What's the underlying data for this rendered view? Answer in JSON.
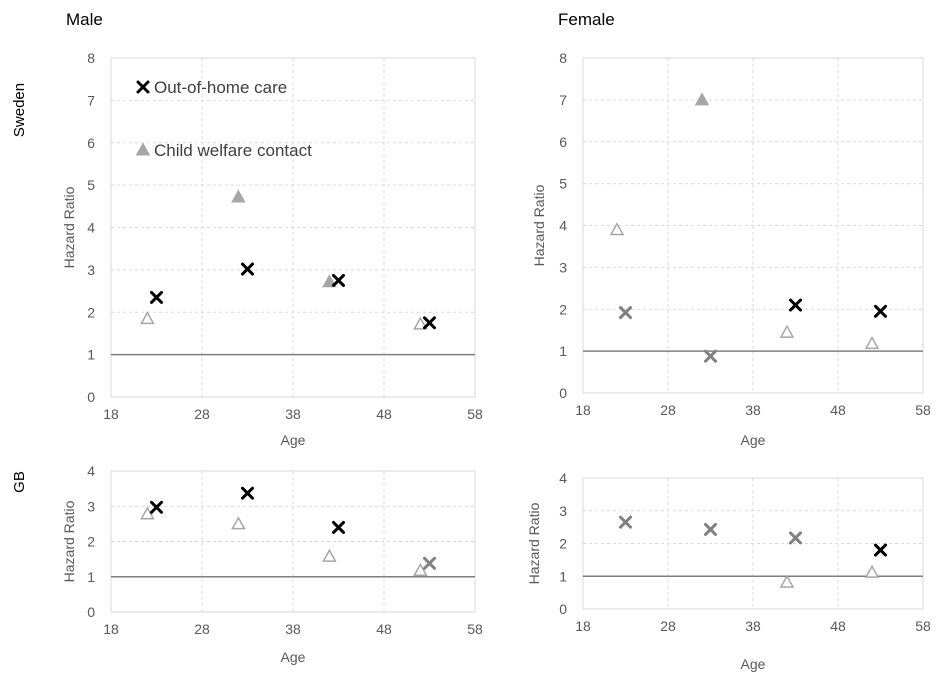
{
  "figure": {
    "col_titles": [
      "Male",
      "Female"
    ],
    "row_labels": [
      "Sweden",
      "GB"
    ]
  },
  "chart_data": [
    {
      "type": "scatter",
      "panel": "Sweden - Male",
      "xlabel": "Age",
      "ylabel": "Hazard Ratio",
      "xlim": [
        18,
        58
      ],
      "ylim": [
        0,
        8
      ],
      "xticks": [
        18,
        28,
        38,
        48,
        58
      ],
      "yticks": [
        0,
        1,
        2,
        3,
        4,
        5,
        6,
        7,
        8
      ],
      "reference_line": 1,
      "grid": true,
      "legend": {
        "placement": "top-left",
        "entries": [
          {
            "label": "Out-of-home care",
            "marker": "x",
            "color": "#000000"
          },
          {
            "label": "Child welfare contact",
            "marker": "triangle-filled",
            "color": "#a6a6a6"
          }
        ]
      },
      "series": [
        {
          "name": "Out-of-home care",
          "x": [
            23,
            33,
            43,
            53
          ],
          "y": [
            2.35,
            3.02,
            2.75,
            1.75
          ],
          "styles": [
            "x-black",
            "x-black",
            "x-black",
            "x-black"
          ]
        },
        {
          "name": "Child welfare contact",
          "x": [
            22,
            32,
            42,
            52
          ],
          "y": [
            1.85,
            4.72,
            2.72,
            1.72
          ],
          "styles": [
            "tri-open",
            "tri-filled",
            "tri-filled",
            "tri-open"
          ]
        }
      ]
    },
    {
      "type": "scatter",
      "panel": "Sweden - Female",
      "xlabel": "Age",
      "ylabel": "Hazard Ratio",
      "xlim": [
        18,
        58
      ],
      "ylim": [
        0,
        8
      ],
      "xticks": [
        18,
        28,
        38,
        48,
        58
      ],
      "yticks": [
        0,
        1,
        2,
        3,
        4,
        5,
        6,
        7,
        8
      ],
      "reference_line": 1,
      "grid": true,
      "series": [
        {
          "name": "Out-of-home care",
          "x": [
            23,
            33,
            43,
            53
          ],
          "y": [
            1.92,
            0.88,
            2.1,
            1.95
          ],
          "styles": [
            "x-gray",
            "x-gray",
            "x-black",
            "x-black"
          ]
        },
        {
          "name": "Child welfare contact",
          "x": [
            22,
            32,
            42,
            52
          ],
          "y": [
            3.9,
            7.0,
            1.45,
            1.18
          ],
          "styles": [
            "tri-open",
            "tri-filled",
            "tri-open",
            "tri-open"
          ]
        }
      ]
    },
    {
      "type": "scatter",
      "panel": "GB - Male",
      "xlabel": "Age",
      "ylabel": "Hazard Ratio",
      "xlim": [
        18,
        58
      ],
      "ylim": [
        0,
        4
      ],
      "xticks": [
        18,
        28,
        38,
        48,
        58
      ],
      "yticks": [
        0,
        1,
        2,
        3,
        4
      ],
      "reference_line": 1,
      "grid": true,
      "series": [
        {
          "name": "Out-of-home care",
          "x": [
            23,
            33,
            43,
            53
          ],
          "y": [
            2.97,
            3.37,
            2.4,
            1.38
          ],
          "styles": [
            "x-black",
            "x-black",
            "x-black",
            "x-gray"
          ]
        },
        {
          "name": "Child welfare contact",
          "x": [
            22,
            32,
            42,
            52
          ],
          "y": [
            2.78,
            2.5,
            1.58,
            1.18
          ],
          "styles": [
            "tri-open",
            "tri-open",
            "tri-open",
            "tri-open"
          ]
        }
      ]
    },
    {
      "type": "scatter",
      "panel": "GB - Female",
      "xlabel": "Age",
      "ylabel": "Hazard Ratio",
      "xlim": [
        18,
        58
      ],
      "ylim": [
        0,
        4
      ],
      "xticks": [
        18,
        28,
        38,
        48,
        58
      ],
      "yticks": [
        0,
        1,
        2,
        3,
        4
      ],
      "reference_line": 1,
      "grid": true,
      "series": [
        {
          "name": "Out-of-home care",
          "x": [
            23,
            33,
            43,
            53
          ],
          "y": [
            2.65,
            2.43,
            2.17,
            1.8
          ],
          "styles": [
            "x-gray",
            "x-gray",
            "x-gray",
            "x-black"
          ]
        },
        {
          "name": "Child welfare contact",
          "x": [
            42,
            52
          ],
          "y": [
            0.82,
            1.12
          ],
          "styles": [
            "tri-open",
            "tri-open"
          ]
        }
      ]
    }
  ],
  "colors": {
    "black_marker": "#000000",
    "gray_marker": "#808080",
    "light_marker": "#a6a6a6",
    "reference_line": "#7f7f7f",
    "gridline": "#d9d9d9",
    "tick_text": "#595959"
  }
}
